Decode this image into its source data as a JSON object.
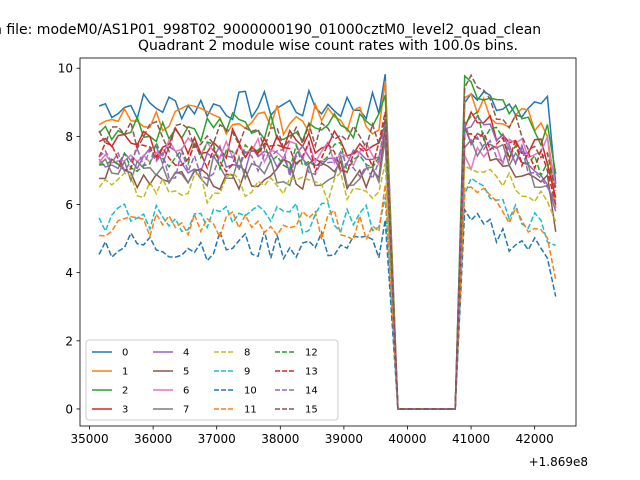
{
  "suptitle": "n file: modeM0/AS1P01_998T02_9000000190_01000cztM0_level2_quad_clean",
  "chart_data": {
    "type": "line",
    "title": "Quadrant 2 module wise count rates with 100.0s bins.",
    "xlabel": "",
    "ylabel": "",
    "x_offset_label": "+1.869e8",
    "xlim": [
      34850,
      42650
    ],
    "ylim": [
      -0.5,
      10.3
    ],
    "xticks": [
      35000,
      36000,
      37000,
      38000,
      39000,
      40000,
      41000,
      42000
    ],
    "yticks": [
      0,
      2,
      4,
      6,
      8,
      10
    ],
    "x": {
      "start": 35150,
      "step": 100,
      "segments": [
        {
          "from": 35150,
          "to": 39650,
          "note": "active"
        },
        {
          "from": 39850,
          "to": 40750,
          "note": "zero gap"
        },
        {
          "from": 40900,
          "to": 42250,
          "note": "active"
        }
      ],
      "last": 42330
    },
    "legend": {
      "position": "lower-left",
      "ncols": 4
    },
    "series": [
      {
        "name": "0",
        "color": "#1f77b4",
        "style": "solid",
        "base": 8.9,
        "seg2_start": 9.2,
        "end": 6.6
      },
      {
        "name": "1",
        "color": "#ff7f0e",
        "style": "solid",
        "base": 8.5,
        "seg2_start": 9.0,
        "end": 5.9
      },
      {
        "name": "2",
        "color": "#2ca02c",
        "style": "solid",
        "base": 8.3,
        "seg2_start": 9.4,
        "end": 6.9
      },
      {
        "name": "3",
        "color": "#d62728",
        "style": "solid",
        "base": 7.8,
        "seg2_start": 8.6,
        "end": 6.2
      },
      {
        "name": "4",
        "color": "#9467bd",
        "style": "solid",
        "base": 7.3,
        "seg2_start": 8.5,
        "end": 5.8
      },
      {
        "name": "5",
        "color": "#8c564b",
        "style": "solid",
        "base": 6.9,
        "seg2_start": 8.2,
        "end": 5.2
      },
      {
        "name": "6",
        "color": "#e377c2",
        "style": "solid",
        "base": 7.6,
        "seg2_start": 7.4,
        "end": 6.5
      },
      {
        "name": "7",
        "color": "#7f7f7f",
        "style": "solid",
        "base": 7.0,
        "seg2_start": 8.0,
        "end": 6.0
      },
      {
        "name": "8",
        "color": "#bcbd22",
        "style": "dashed",
        "base": 6.5,
        "seg2_start": 7.4,
        "end": 5.5
      },
      {
        "name": "9",
        "color": "#17becf",
        "style": "dashed",
        "base": 5.6,
        "seg2_start": 6.6,
        "end": 4.8
      },
      {
        "name": "10",
        "color": "#1f77b4",
        "style": "dashed",
        "base": 4.8,
        "seg2_start": 5.5,
        "end": 3.3
      },
      {
        "name": "11",
        "color": "#ff7f0e",
        "style": "dashed",
        "base": 5.4,
        "seg2_start": 6.8,
        "end": 3.8
      },
      {
        "name": "12",
        "color": "#2ca02c",
        "style": "dashed",
        "base": 7.4,
        "seg2_start": 8.6,
        "end": 6.5
      },
      {
        "name": "13",
        "color": "#d62728",
        "style": "dashed",
        "base": 7.4,
        "seg2_start": 8.4,
        "end": 6.0
      },
      {
        "name": "14",
        "color": "#9467bd",
        "style": "dashed",
        "base": 7.2,
        "seg2_start": 8.2,
        "end": 6.1
      },
      {
        "name": "15",
        "color": "#8c564b",
        "style": "dashed",
        "base": 8.0,
        "seg2_start": 9.7,
        "end": 6.4
      }
    ]
  }
}
